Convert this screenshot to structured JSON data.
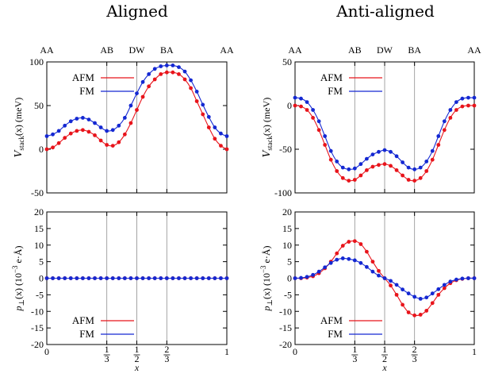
{
  "titles": {
    "left": "Aligned",
    "right": "Anti-aligned"
  },
  "top_labels": [
    "AA",
    "AB",
    "DW",
    "BA",
    "AA"
  ],
  "legend": {
    "afm": "AFM",
    "fm": "FM"
  },
  "colors": {
    "afm": "#e8141b",
    "fm": "#1428d2",
    "grid": "#9a9a9a"
  },
  "ylabels": {
    "top_main": "V",
    "top_sub": "stack",
    "top_rest": "(x) (meV)",
    "bottom_main": "p",
    "bottom_sub": "⊥",
    "bottom_rest": "(x) (10",
    "bottom_exp": "−3",
    "bottom_end": "e·Å)"
  },
  "xlabel": "x",
  "x_ticks": [
    {
      "v": 0,
      "label": "0"
    },
    {
      "v": 0.3333,
      "label": "1/3"
    },
    {
      "v": 0.5,
      "label": "1/2"
    },
    {
      "v": 0.6667,
      "label": "2/3"
    },
    {
      "v": 1,
      "label": "1"
    }
  ],
  "chart_data": [
    {
      "panel": "top-left",
      "type": "line",
      "ylim": [
        -50,
        100
      ],
      "yticks": [
        -50,
        0,
        50,
        100
      ],
      "series": [
        {
          "name": "AFM",
          "x": [
            0,
            0.0333,
            0.0667,
            0.1,
            0.1333,
            0.1667,
            0.2,
            0.2333,
            0.2667,
            0.3,
            0.3333,
            0.3667,
            0.4,
            0.4333,
            0.4667,
            0.5,
            0.5333,
            0.5667,
            0.6,
            0.6333,
            0.6667,
            0.7,
            0.7333,
            0.7667,
            0.8,
            0.8333,
            0.8667,
            0.9,
            0.9333,
            0.9667,
            1
          ],
          "y": [
            0,
            2,
            7,
            13,
            18,
            21,
            22,
            20,
            16,
            10,
            5,
            4,
            8,
            17,
            30,
            45,
            60,
            72,
            80,
            86,
            88,
            88,
            86,
            80,
            70,
            55,
            40,
            25,
            12,
            4,
            0
          ]
        },
        {
          "name": "FM",
          "x": [
            0,
            0.0333,
            0.0667,
            0.1,
            0.1333,
            0.1667,
            0.2,
            0.2333,
            0.2667,
            0.3,
            0.3333,
            0.3667,
            0.4,
            0.4333,
            0.4667,
            0.5,
            0.5333,
            0.5667,
            0.6,
            0.6333,
            0.6667,
            0.7,
            0.7333,
            0.7667,
            0.8,
            0.8333,
            0.8667,
            0.9,
            0.9333,
            0.9667,
            1
          ],
          "y": [
            15,
            17,
            21,
            27,
            32,
            35,
            36,
            34,
            30,
            25,
            21,
            22,
            27,
            36,
            50,
            64,
            77,
            86,
            92,
            95,
            96,
            96,
            94,
            89,
            79,
            66,
            51,
            37,
            25,
            18,
            15
          ]
        }
      ]
    },
    {
      "panel": "bottom-left",
      "type": "line",
      "ylim": [
        -20,
        20
      ],
      "yticks": [
        -20,
        -15,
        -10,
        -5,
        0,
        5,
        10,
        15,
        20
      ],
      "series": [
        {
          "name": "AFM",
          "x": [
            0,
            0.0333,
            0.0667,
            0.1,
            0.1333,
            0.1667,
            0.2,
            0.2333,
            0.2667,
            0.3,
            0.3333,
            0.3667,
            0.4,
            0.4333,
            0.4667,
            0.5,
            0.5333,
            0.5667,
            0.6,
            0.6333,
            0.6667,
            0.7,
            0.7333,
            0.7667,
            0.8,
            0.8333,
            0.8667,
            0.9,
            0.9333,
            0.9667,
            1
          ],
          "y": [
            0,
            0,
            0,
            0,
            0,
            0,
            0,
            0,
            0,
            0,
            0,
            0,
            0,
            0,
            0,
            0,
            0,
            0,
            0,
            0,
            0,
            0,
            0,
            0,
            0,
            0,
            0,
            0,
            0,
            0,
            0
          ]
        },
        {
          "name": "FM",
          "x": [
            0,
            0.0333,
            0.0667,
            0.1,
            0.1333,
            0.1667,
            0.2,
            0.2333,
            0.2667,
            0.3,
            0.3333,
            0.3667,
            0.4,
            0.4333,
            0.4667,
            0.5,
            0.5333,
            0.5667,
            0.6,
            0.6333,
            0.6667,
            0.7,
            0.7333,
            0.7667,
            0.8,
            0.8333,
            0.8667,
            0.9,
            0.9333,
            0.9667,
            1
          ],
          "y": [
            0,
            0,
            0,
            0,
            0,
            0,
            0,
            0,
            0,
            0,
            0,
            0,
            0,
            0,
            0,
            0,
            0,
            0,
            0,
            0,
            0,
            0,
            0,
            0,
            0,
            0,
            0,
            0,
            0,
            0,
            0
          ]
        }
      ]
    },
    {
      "panel": "top-right",
      "type": "line",
      "ylim": [
        -100,
        50
      ],
      "yticks": [
        -100,
        -50,
        0,
        50
      ],
      "series": [
        {
          "name": "AFM",
          "x": [
            0,
            0.0333,
            0.0667,
            0.1,
            0.1333,
            0.1667,
            0.2,
            0.2333,
            0.2667,
            0.3,
            0.3333,
            0.3667,
            0.4,
            0.4333,
            0.4667,
            0.5,
            0.5333,
            0.5667,
            0.6,
            0.6333,
            0.6667,
            0.7,
            0.7333,
            0.7667,
            0.8,
            0.8333,
            0.8667,
            0.9,
            0.9333,
            0.9667,
            1
          ],
          "y": [
            0,
            -1,
            -5,
            -14,
            -28,
            -45,
            -62,
            -75,
            -83,
            -86,
            -85,
            -80,
            -74,
            -70,
            -68,
            -67,
            -69,
            -74,
            -80,
            -85,
            -86,
            -83,
            -75,
            -62,
            -45,
            -28,
            -14,
            -5,
            -1,
            0,
            0
          ]
        },
        {
          "name": "FM",
          "x": [
            0,
            0.0333,
            0.0667,
            0.1,
            0.1333,
            0.1667,
            0.2,
            0.2333,
            0.2667,
            0.3,
            0.3333,
            0.3667,
            0.4,
            0.4333,
            0.4667,
            0.5,
            0.5333,
            0.5667,
            0.6,
            0.6333,
            0.6667,
            0.7,
            0.7333,
            0.7667,
            0.8,
            0.8333,
            0.8667,
            0.9,
            0.9333,
            0.9667,
            1
          ],
          "y": [
            9,
            8,
            4,
            -5,
            -18,
            -35,
            -52,
            -64,
            -71,
            -73,
            -72,
            -67,
            -61,
            -56,
            -53,
            -51,
            -53,
            -58,
            -65,
            -71,
            -73,
            -71,
            -64,
            -52,
            -35,
            -18,
            -5,
            4,
            8,
            9,
            9
          ]
        }
      ]
    },
    {
      "panel": "bottom-right",
      "type": "line",
      "ylim": [
        -20,
        20
      ],
      "yticks": [
        -20,
        -15,
        -10,
        -5,
        0,
        5,
        10,
        15,
        20
      ],
      "series": [
        {
          "name": "AFM",
          "x": [
            0,
            0.0333,
            0.0667,
            0.1,
            0.1333,
            0.1667,
            0.2,
            0.2333,
            0.2667,
            0.3,
            0.3333,
            0.3667,
            0.4,
            0.4333,
            0.4667,
            0.5,
            0.5333,
            0.5667,
            0.6,
            0.6333,
            0.6667,
            0.7,
            0.7333,
            0.7667,
            0.8,
            0.8333,
            0.8667,
            0.9,
            0.9333,
            0.9667,
            1
          ],
          "y": [
            0,
            0,
            0.2,
            0.6,
            1.5,
            3,
            5,
            7.5,
            9.8,
            11,
            11.2,
            10.3,
            8,
            5,
            2.2,
            0,
            -2.2,
            -5,
            -8,
            -10.3,
            -11.2,
            -11,
            -9.8,
            -7.5,
            -5,
            -3,
            -1.5,
            -0.6,
            -0.2,
            0,
            0
          ]
        },
        {
          "name": "FM",
          "x": [
            0,
            0.0333,
            0.0667,
            0.1,
            0.1333,
            0.1667,
            0.2,
            0.2333,
            0.2667,
            0.3,
            0.3333,
            0.3667,
            0.4,
            0.4333,
            0.4667,
            0.5,
            0.5333,
            0.5667,
            0.6,
            0.6333,
            0.6667,
            0.7,
            0.7333,
            0.7667,
            0.8,
            0.8333,
            0.8667,
            0.9,
            0.9333,
            0.9667,
            1
          ],
          "y": [
            0,
            0.1,
            0.4,
            1,
            2,
            3.3,
            4.6,
            5.6,
            6,
            5.8,
            5.4,
            4.6,
            3.4,
            2,
            0.8,
            0,
            -0.8,
            -2,
            -3.4,
            -4.6,
            -5.6,
            -6.2,
            -5.8,
            -4.6,
            -3.3,
            -2,
            -1,
            -0.4,
            -0.1,
            0,
            0
          ]
        }
      ]
    }
  ]
}
